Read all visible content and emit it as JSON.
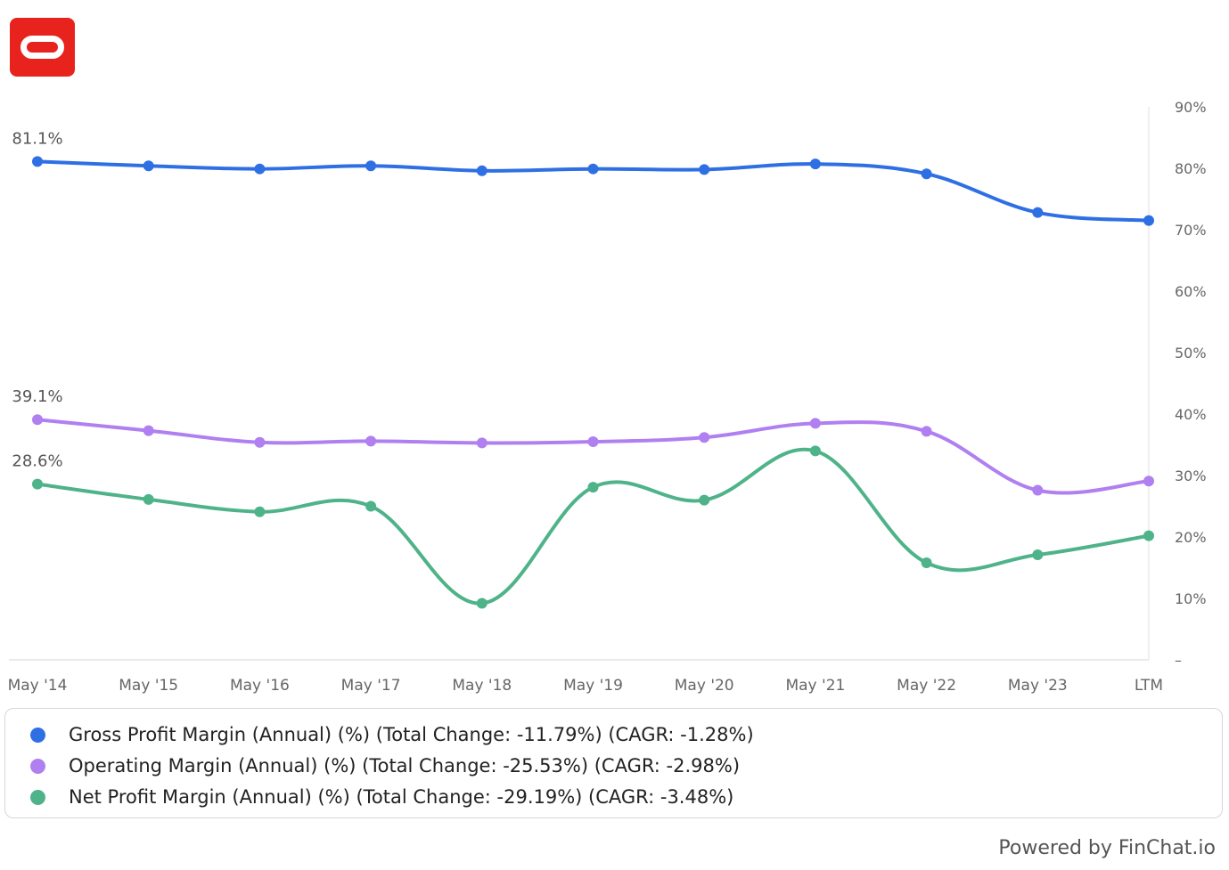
{
  "chart_data": {
    "type": "line",
    "categories": [
      "May '14",
      "May '15",
      "May '16",
      "May '17",
      "May '18",
      "May '19",
      "May '20",
      "May '21",
      "May '22",
      "May '23",
      "LTM"
    ],
    "y_ticks": [
      "90%",
      "80%",
      "70%",
      "60%",
      "50%",
      "40%",
      "30%",
      "20%",
      "10%",
      "–"
    ],
    "ylim": [
      0,
      90
    ],
    "y_axis_position": "right",
    "grid": false,
    "legend_position": "bottom",
    "series": [
      {
        "name": "Gross Profit Margin (Annual) (%) (Total Change: -11.79%) (CAGR: -1.28%)",
        "color": "#2f6fe4",
        "values": [
          81.1,
          80.4,
          79.9,
          80.4,
          79.6,
          79.9,
          79.8,
          80.7,
          79.1,
          72.8,
          71.5
        ],
        "first_label": "81.1%"
      },
      {
        "name": "Operating Margin (Annual) (%) (Total Change: -25.53%) (CAGR: -2.98%)",
        "color": "#b07ff0",
        "values": [
          39.1,
          37.3,
          35.4,
          35.6,
          35.3,
          35.5,
          36.2,
          38.5,
          37.2,
          27.6,
          29.1
        ],
        "first_label": "39.1%"
      },
      {
        "name": "Net Profit Margin (Annual) (%) (Total Change: -29.19%) (CAGR: -3.48%)",
        "color": "#4fb38a",
        "values": [
          28.6,
          26.1,
          24.1,
          25.0,
          9.2,
          28.1,
          26.0,
          34.0,
          15.8,
          17.1,
          20.2
        ],
        "first_label": "28.6%"
      }
    ]
  },
  "footer": {
    "powered_by": "Powered by FinChat.io"
  },
  "logo": {
    "brand": "Oracle",
    "color": "#e8231d"
  }
}
